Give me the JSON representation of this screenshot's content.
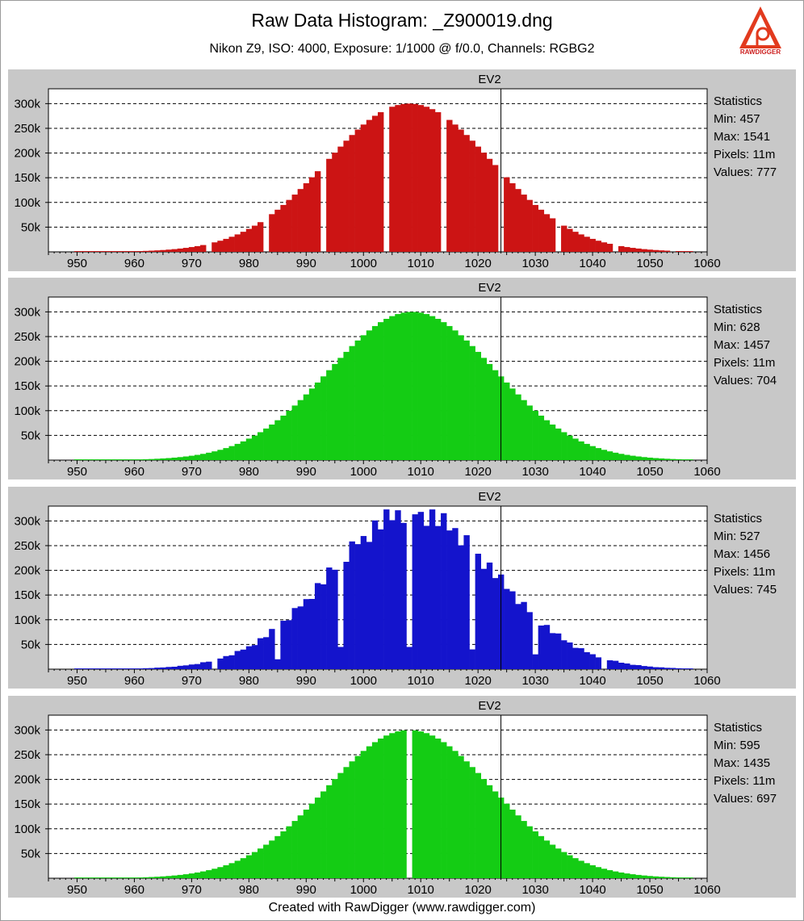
{
  "header": {
    "title": "Raw Data Histogram: _Z900019.dng",
    "subtitle": "Nikon Z9, ISO: 4000, Exposure: 1/1000 @ f/0.0, Channels: RGBG2",
    "logo_text": "RAWDIGGER"
  },
  "footer": {
    "text": "Created with RawDigger (www.rawdigger.com)"
  },
  "colors": {
    "R": "#cc1414",
    "G": "#14cc14",
    "B": "#1414cc",
    "G2": "#14cc14"
  },
  "chart_data": [
    {
      "type": "bar",
      "channel": "R",
      "title": "EV2",
      "xlim": [
        945,
        1060
      ],
      "xticks": [
        950,
        960,
        970,
        980,
        990,
        1000,
        1010,
        1020,
        1030,
        1040,
        1050,
        1060
      ],
      "ylim": [
        0,
        330000
      ],
      "yticks": [
        50000,
        100000,
        150000,
        200000,
        250000,
        300000
      ],
      "ytick_labels": [
        "50k",
        "100k",
        "150k",
        "200k",
        "250k",
        "300k"
      ],
      "marker_x": 1024,
      "stats": {
        "heading": "Statistics",
        "min": "Min: 457",
        "max": "Max: 1541",
        "pixels": "Pixels: 11m",
        "values": "Values: 777"
      },
      "shape": {
        "mu": 1008,
        "sigma": 14.5,
        "peak": 300000
      },
      "gaps": [
        973,
        983,
        993,
        1004,
        1014,
        1024,
        1034,
        1044,
        1054
      ]
    },
    {
      "type": "bar",
      "channel": "G",
      "title": "EV2",
      "xlim": [
        945,
        1060
      ],
      "xticks": [
        950,
        960,
        970,
        980,
        990,
        1000,
        1010,
        1020,
        1030,
        1040,
        1050,
        1060
      ],
      "ylim": [
        0,
        330000
      ],
      "yticks": [
        50000,
        100000,
        150000,
        200000,
        250000,
        300000
      ],
      "ytick_labels": [
        "50k",
        "100k",
        "150k",
        "200k",
        "250k",
        "300k"
      ],
      "marker_x": 1024,
      "stats": {
        "heading": "Statistics",
        "min": "Min: 628",
        "max": "Max: 1457",
        "pixels": "Pixels: 11m",
        "values": "Values: 704"
      },
      "shape": {
        "mu": 1008.5,
        "sigma": 14.5,
        "peak": 300000
      },
      "gaps": []
    },
    {
      "type": "bar",
      "channel": "B",
      "title": "EV2",
      "xlim": [
        945,
        1060
      ],
      "xticks": [
        950,
        960,
        970,
        980,
        990,
        1000,
        1010,
        1020,
        1030,
        1040,
        1050,
        1060
      ],
      "ylim": [
        0,
        330000
      ],
      "yticks": [
        50000,
        100000,
        150000,
        200000,
        250000,
        300000
      ],
      "ytick_labels": [
        "50k",
        "100k",
        "150k",
        "200k",
        "250k",
        "300k"
      ],
      "marker_x": 1024,
      "stats": {
        "heading": "Statistics",
        "min": "Min: 527",
        "max": "Max: 1456",
        "pixels": "Pixels: 11m",
        "values": "Values: 745"
      },
      "shape": {
        "mu": 1008.5,
        "sigma": 14.5,
        "peak": 320000
      },
      "gaps": [
        974,
        985,
        996,
        1008,
        1019,
        1030,
        1042
      ],
      "dips": {
        "996": 45000,
        "1008": 45000,
        "985": 20000,
        "1019": 40000,
        "1030": 30000
      }
    },
    {
      "type": "bar",
      "channel": "G2",
      "title": "EV2",
      "xlim": [
        945,
        1060
      ],
      "xticks": [
        950,
        960,
        970,
        980,
        990,
        1000,
        1010,
        1020,
        1030,
        1040,
        1050,
        1060
      ],
      "ylim": [
        0,
        330000
      ],
      "yticks": [
        50000,
        100000,
        150000,
        200000,
        250000,
        300000
      ],
      "ytick_labels": [
        "50k",
        "100k",
        "150k",
        "200k",
        "250k",
        "300k"
      ],
      "marker_x": 1024,
      "stats": {
        "heading": "Statistics",
        "min": "Min: 595",
        "max": "Max: 1435",
        "pixels": "Pixels: 11m",
        "values": "Values: 697"
      },
      "shape": {
        "mu": 1008,
        "sigma": 14.5,
        "peak": 300000
      },
      "gaps": [
        1008
      ]
    }
  ]
}
